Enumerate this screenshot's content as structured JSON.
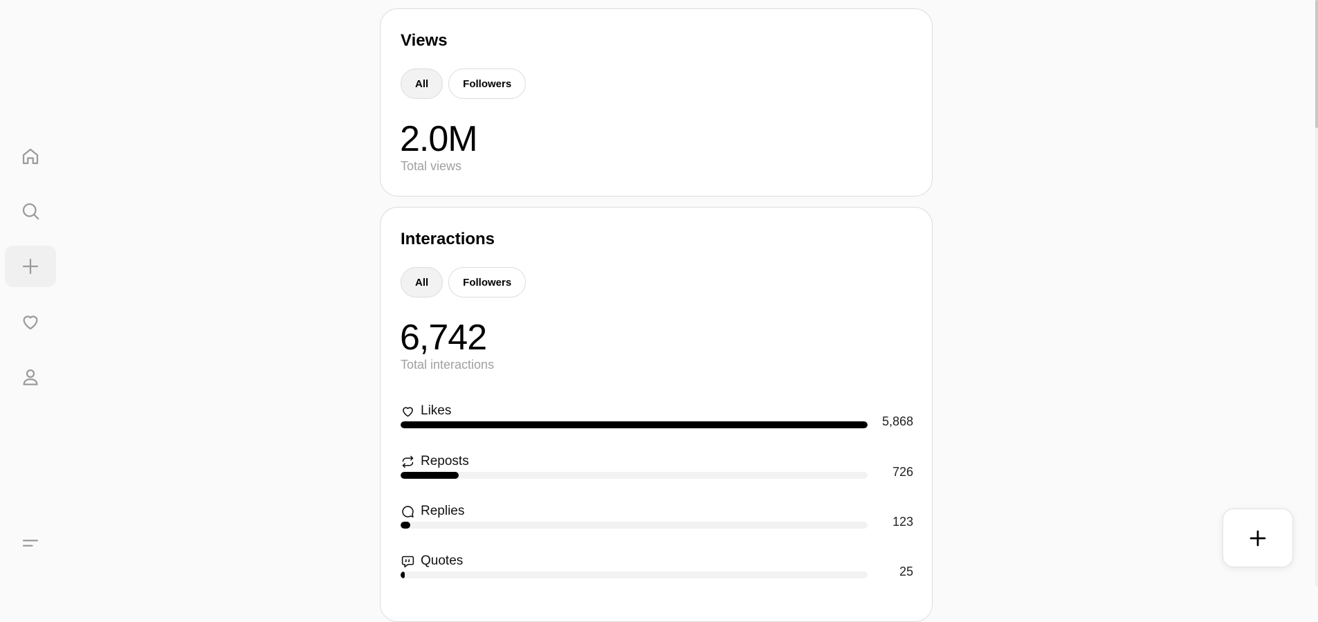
{
  "sidebar": {
    "items": [
      {
        "icon": "home-icon"
      },
      {
        "icon": "search-icon"
      },
      {
        "icon": "plus-icon"
      },
      {
        "icon": "heart-icon"
      },
      {
        "icon": "user-icon"
      }
    ],
    "menu_icon": "menu-icon"
  },
  "views": {
    "title": "Views",
    "filters": [
      "All",
      "Followers"
    ],
    "active_filter": "All",
    "total": "2.0M",
    "total_label": "Total views"
  },
  "interactions": {
    "title": "Interactions",
    "filters": [
      "All",
      "Followers"
    ],
    "active_filter": "All",
    "total": "6,742",
    "total_label": "Total interactions",
    "metrics": [
      {
        "label": "Likes",
        "icon": "heart-icon",
        "value": "5,868",
        "fraction": 1.0
      },
      {
        "label": "Reposts",
        "icon": "repost-icon",
        "value": "726",
        "fraction": 0.124
      },
      {
        "label": "Replies",
        "icon": "reply-icon",
        "value": "123",
        "fraction": 0.021
      },
      {
        "label": "Quotes",
        "icon": "quote-icon",
        "value": "25",
        "fraction": 0.004
      }
    ]
  },
  "fab": {
    "icon": "plus-icon"
  }
}
